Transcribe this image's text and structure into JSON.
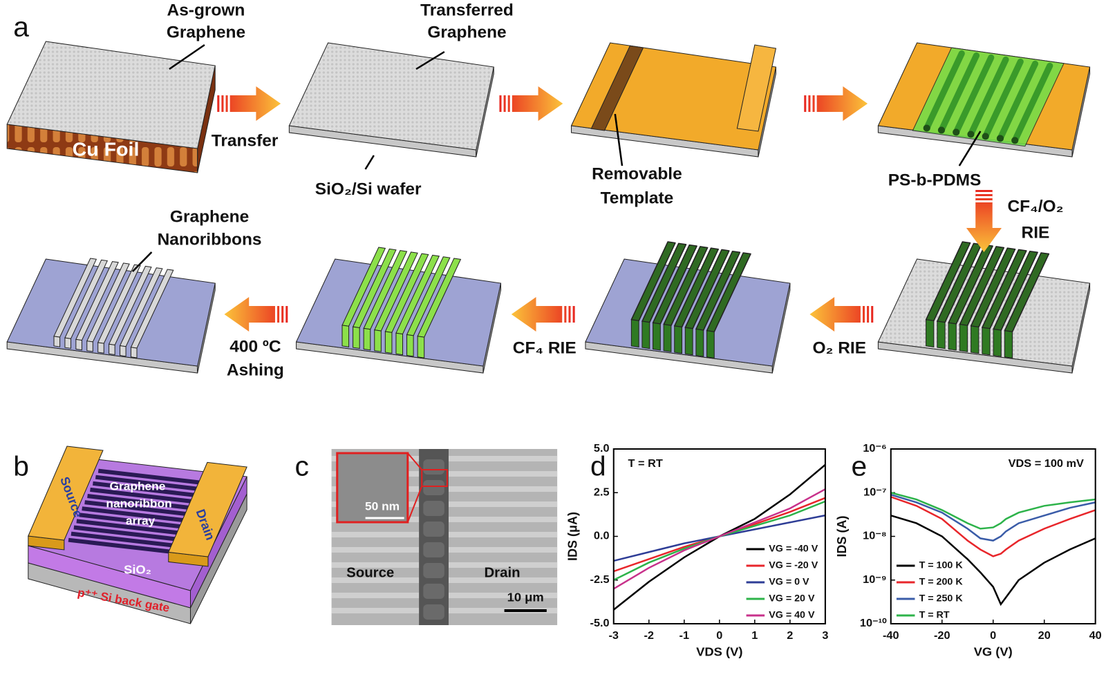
{
  "figure": {
    "a": {
      "label": "a",
      "as_grown": [
        "As-grown",
        "Graphene"
      ],
      "cu_foil": "Cu Foil",
      "transfer": "Transfer",
      "transferred": [
        "Transferred",
        "Graphene"
      ],
      "wafer": "SiO₂/Si wafer",
      "template": [
        "Removable",
        "Template"
      ],
      "bcp": "PS-b-PDMS",
      "cf4o2": [
        "CF₄/O₂",
        "RIE"
      ],
      "o2": "O₂ RIE",
      "cf4": "CF₄ RIE",
      "ashing": [
        "400 ºC",
        "Ashing"
      ],
      "gnr": [
        "Graphene",
        "Nanoribbons"
      ]
    },
    "b": {
      "label": "b",
      "source": "Source",
      "drain": "Drain",
      "array": [
        "Graphene",
        "nanoribbon",
        "array"
      ],
      "oxide": "SiO₂",
      "gate": "p⁺⁺ Si back gate"
    },
    "c": {
      "label": "c",
      "inset_scale": "50 nm",
      "source": "Source",
      "drain": "Drain",
      "scale": "10 μm"
    }
  },
  "chart_data": [
    {
      "type": "line",
      "label": "d",
      "annotation": "T = RT",
      "x_label": "VDS (V)",
      "y_label": "IDS (μA)",
      "x": [
        -3,
        -2,
        -1,
        0,
        1,
        2,
        3
      ],
      "series": [
        {
          "name": "VG = -40 V",
          "color": "#000000",
          "values": [
            -4.2,
            -2.6,
            -1.2,
            0,
            1.0,
            2.4,
            4.1
          ]
        },
        {
          "name": "VG = -20 V",
          "color": "#e8262b",
          "values": [
            -2.0,
            -1.3,
            -0.6,
            0,
            0.7,
            1.4,
            2.2
          ]
        },
        {
          "name": "VG =   0 V",
          "color": "#2e3d96",
          "values": [
            -1.4,
            -0.9,
            -0.4,
            0,
            0.4,
            0.8,
            1.2
          ]
        },
        {
          "name": "VG = 20 V",
          "color": "#2db34a",
          "values": [
            -2.5,
            -1.5,
            -0.7,
            0,
            0.6,
            1.2,
            2.0
          ]
        },
        {
          "name": "VG = 40 V",
          "color": "#c8318b",
          "values": [
            -3.0,
            -1.8,
            -0.8,
            0,
            0.8,
            1.6,
            2.7
          ]
        }
      ],
      "xlim": [
        -3,
        3
      ],
      "xticks": [
        -3,
        -2,
        -1,
        0,
        1,
        2,
        3
      ],
      "ylim": [
        -5,
        5
      ],
      "yticks": [
        {
          "value": -5,
          "label": "-5.0"
        },
        {
          "value": -2.5,
          "label": "-2.5"
        },
        {
          "value": 0,
          "label": "0.0"
        },
        {
          "value": 2.5,
          "label": "2.5"
        },
        {
          "value": 5,
          "label": "5.0"
        }
      ],
      "legend": "lower right"
    },
    {
      "type": "line",
      "label": "e",
      "annotation": "VDS = 100 mV",
      "x_label": "VG (V)",
      "y_label": "IDS (A)",
      "x": [
        -40,
        -30,
        -20,
        -10,
        -5,
        0,
        3,
        5,
        10,
        20,
        30,
        40
      ],
      "series": [
        {
          "name": "T = 100 K",
          "color": "#000000",
          "values": [
            3e-08,
            2e-08,
            1e-08,
            3e-09,
            1.5e-09,
            7e-10,
            2.8e-10,
            4e-10,
            1e-09,
            2.5e-09,
            5e-09,
            9e-09
          ]
        },
        {
          "name": "T = 200 K",
          "color": "#e8262b",
          "values": [
            8e-08,
            5e-08,
            2.5e-08,
            8e-09,
            5e-09,
            3.5e-09,
            4e-09,
            5e-09,
            8e-09,
            1.5e-08,
            2.5e-08,
            4e-08
          ]
        },
        {
          "name": "T = 250 K",
          "color": "#3a5ca8",
          "values": [
            9e-08,
            6e-08,
            3.5e-08,
            1.5e-08,
            9e-09,
            8e-09,
            1e-08,
            1.3e-08,
            2e-08,
            3e-08,
            4.5e-08,
            6e-08
          ]
        },
        {
          "name": "T = RT",
          "color": "#2db34a",
          "values": [
            1e-07,
            7e-08,
            4e-08,
            2e-08,
            1.5e-08,
            1.6e-08,
            2e-08,
            2.5e-08,
            3.5e-08,
            5e-08,
            6e-08,
            7e-08
          ]
        }
      ],
      "xlim": [
        -40,
        40
      ],
      "xticks": [
        -40,
        -20,
        0,
        20,
        40
      ],
      "ylim": [
        1e-10,
        1e-06
      ],
      "log_y": true,
      "yticks": [
        {
          "value": 1e-10,
          "label": "10⁻¹⁰"
        },
        {
          "value": 1e-09,
          "label": "10⁻⁹"
        },
        {
          "value": 1e-08,
          "label": "10⁻⁸"
        },
        {
          "value": 1e-07,
          "label": "10⁻⁷"
        },
        {
          "value": 1e-06,
          "label": "10⁻⁶"
        }
      ],
      "legend": "lower left"
    }
  ]
}
